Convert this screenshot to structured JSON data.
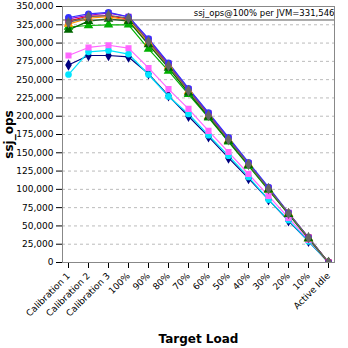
{
  "chart_data": {
    "type": "line",
    "x_label": "Target Load",
    "y_label": "ssj_ops",
    "annotations": [
      {
        "text": "ssj_ops@100% per JVM=331,546",
        "y": 331546
      }
    ],
    "categories": [
      "Calibration 1",
      "Calibration 2",
      "Calibration 3",
      "100%",
      "90%",
      "80%",
      "70%",
      "60%",
      "50%",
      "40%",
      "30%",
      "20%",
      "10%",
      "Active Idle"
    ],
    "series": [
      {
        "color": "#000080",
        "marker": "diamond",
        "values": [
          270000,
          283000,
          283000,
          281000,
          258000,
          228000,
          200000,
          172000,
          143000,
          115000,
          86000,
          57000,
          29000,
          0
        ]
      },
      {
        "color": "#00e5ff",
        "marker": "circle",
        "values": [
          257000,
          288000,
          290000,
          285000,
          257000,
          227000,
          203000,
          174000,
          146000,
          117000,
          86000,
          58000,
          29000,
          0
        ]
      },
      {
        "color": "#ff66ff",
        "marker": "square",
        "values": [
          283000,
          294000,
          297000,
          293000,
          266000,
          237000,
          210000,
          180000,
          151000,
          121000,
          91000,
          61000,
          31000,
          0
        ]
      },
      {
        "color": "#00b000",
        "marker": "triangle",
        "values": [
          322000,
          324000,
          325000,
          325000,
          292000,
          262000,
          230000,
          198000,
          165000,
          132000,
          99000,
          66000,
          33000,
          0
        ]
      },
      {
        "color": "#ff0000",
        "marker": "square",
        "values": [
          330000,
          337000,
          337000,
          333000,
          303000,
          270000,
          235000,
          202000,
          168000,
          135000,
          101000,
          67000,
          34000,
          0
        ]
      },
      {
        "color": "#9900cc",
        "marker": "square",
        "values": [
          333000,
          338000,
          341000,
          336000,
          305000,
          272000,
          237000,
          204000,
          170000,
          136000,
          102000,
          68000,
          34000,
          0
        ]
      },
      {
        "color": "#3333ff",
        "marker": "circle",
        "values": [
          335000,
          340000,
          342000,
          336000,
          306000,
          273000,
          238000,
          205000,
          171000,
          137000,
          103000,
          68000,
          34000,
          0
        ]
      },
      {
        "color": "#ff9900",
        "marker": "triangle",
        "values": [
          326000,
          334000,
          336000,
          331000,
          300000,
          268000,
          234000,
          200000,
          167000,
          134000,
          100000,
          67000,
          33000,
          0
        ]
      },
      {
        "color": "#006600",
        "marker": "triangle",
        "values": [
          318000,
          330000,
          333000,
          330000,
          298000,
          266000,
          232000,
          199000,
          166000,
          133000,
          100000,
          66000,
          33000,
          0
        ]
      },
      {
        "color": "#666666",
        "marker": "diamond",
        "values": [
          328000,
          336000,
          338000,
          334000,
          302000,
          269000,
          235000,
          201000,
          168000,
          134000,
          101000,
          67000,
          34000,
          0
        ]
      }
    ],
    "ylim": [
      0,
      350000
    ],
    "yticks": [
      0,
      {
        "value": 25000,
        "label": "25,000"
      },
      {
        "value": 50000,
        "label": "50,000"
      },
      {
        "value": 75000,
        "label": "75,000"
      },
      {
        "value": 100000,
        "label": "100,000"
      },
      {
        "value": 125000,
        "label": "125,000"
      },
      {
        "value": 150000,
        "label": "150,000"
      },
      {
        "value": 175000,
        "label": "175,000"
      },
      {
        "value": 200000,
        "label": "200,000"
      },
      {
        "value": 225000,
        "label": "225,000"
      },
      {
        "value": 250000,
        "label": "250,000"
      },
      {
        "value": 275000,
        "label": "275,000"
      },
      {
        "value": 300000,
        "label": "300,000"
      },
      {
        "value": 325000,
        "label": "325,000"
      },
      {
        "value": 350000,
        "label": "350,000"
      }
    ],
    "grid": true
  }
}
